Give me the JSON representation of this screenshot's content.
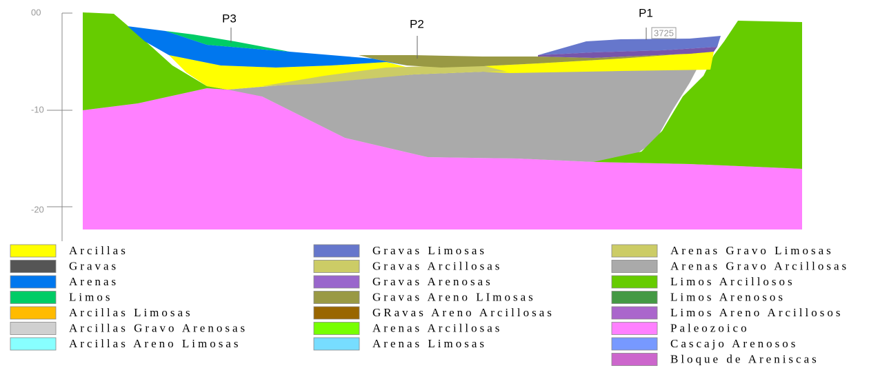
{
  "axis": {
    "ticks": [
      "00",
      "-10",
      "-20"
    ]
  },
  "boreholes": [
    {
      "label": "P3"
    },
    {
      "label": "P2"
    },
    {
      "label": "P1",
      "note": "3725"
    }
  ],
  "legend": [
    [
      {
        "name": "Arcillas",
        "color": "#ffff00"
      },
      {
        "name": "Gravas",
        "color": "#555555"
      },
      {
        "name": "Arenas",
        "color": "#0077ee"
      },
      {
        "name": "Limos",
        "color": "#00cc66"
      },
      {
        "name": "Arcillas Limosas",
        "color": "#ffbb00"
      },
      {
        "name": "Arcillas Gravo Arenosas",
        "color": "#d0d0d0"
      },
      {
        "name": "Arcillas Areno Limosas",
        "color": "#88ffff"
      }
    ],
    [
      {
        "name": "Gravas Limosas",
        "color": "#6677cc"
      },
      {
        "name": "Gravas Arcillosas",
        "color": "#cccc66"
      },
      {
        "name": "Gravas Arenosas",
        "color": "#9966cc"
      },
      {
        "name": "Gravas Areno LImosas",
        "color": "#999944"
      },
      {
        "name": "GRavas Areno Arcillosas",
        "color": "#996600"
      },
      {
        "name": "Arenas Arcillosas",
        "color": "#77ff00"
      },
      {
        "name": "Arenas Limosas",
        "color": "#77ddff"
      }
    ],
    [
      {
        "name": "Arenas Gravo Limosas",
        "color": "#cccc66"
      },
      {
        "name": "Arenas Gravo Arcillosas",
        "color": "#aaaaaa"
      },
      {
        "name": "Limos Arcillosos",
        "color": "#66cc00"
      },
      {
        "name": "Limos Arenosos",
        "color": "#449944"
      },
      {
        "name": "Limos Areno Arcillosos",
        "color": "#aa66cc"
      },
      {
        "name": "Paleozoico",
        "color": "#ff80ff"
      },
      {
        "name": "Cascajo Arenosos",
        "color": "#7799ff"
      },
      {
        "name": "Bloque de Areniscas",
        "color": "#cc66cc"
      }
    ]
  ]
}
